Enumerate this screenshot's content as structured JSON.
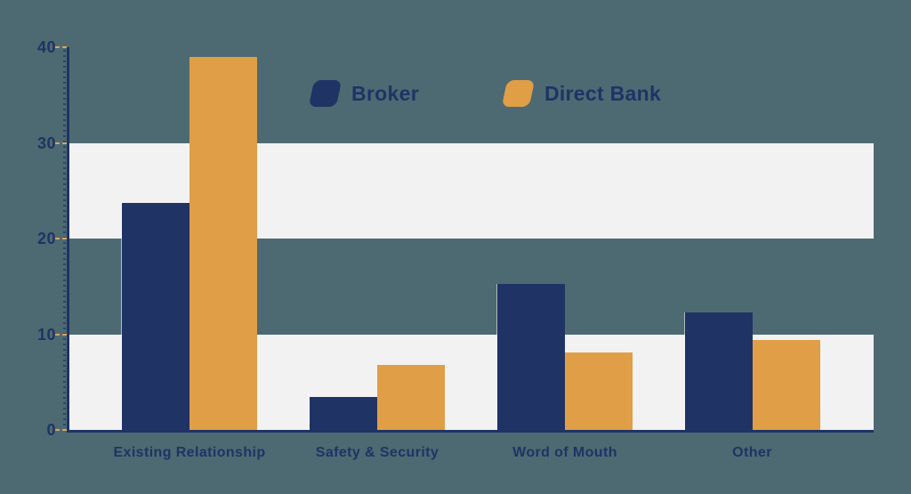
{
  "colors": {
    "background": "#4d6a72",
    "band": "#f2f2f3",
    "navy": "#1f3365",
    "orange": "#e09e47",
    "tick_dash": "#dba45f"
  },
  "legend": {
    "items": [
      {
        "label": "Broker"
      },
      {
        "label": "Direct Bank"
      }
    ]
  },
  "chart_data": {
    "type": "bar",
    "title": "",
    "xlabel": "",
    "ylabel": "",
    "categories": [
      "Existing Relationship",
      "Safety & Security",
      "Word of Mouth",
      "Other"
    ],
    "series": [
      {
        "name": "Broker",
        "color": "#1f3365",
        "values": [
          23.7,
          3.4,
          15.3,
          12.3
        ]
      },
      {
        "name": "Direct Bank",
        "color": "#e09e47",
        "values": [
          39.0,
          6.8,
          8.1,
          9.4
        ]
      }
    ],
    "ylim": [
      0,
      40
    ],
    "yticks": [
      0,
      10,
      20,
      30,
      40
    ],
    "grid": "alternating horizontal white bands",
    "band_ranges": [
      [
        0,
        10
      ],
      [
        20,
        30
      ]
    ],
    "legend_position": "top-center"
  }
}
